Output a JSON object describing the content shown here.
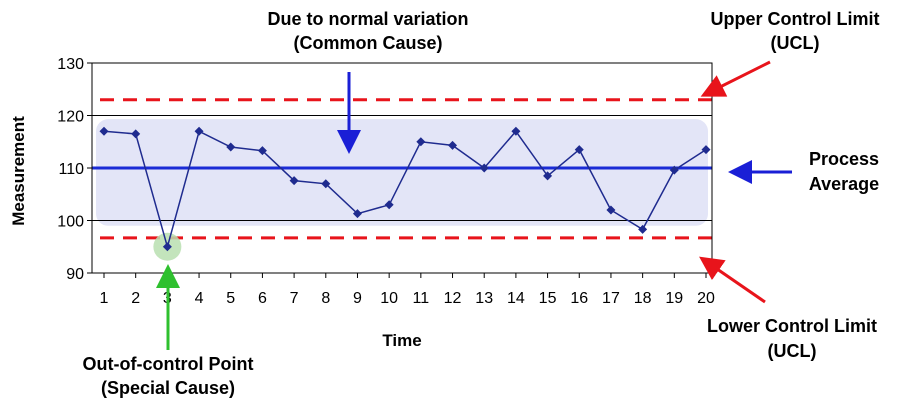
{
  "chart_data": {
    "type": "line",
    "xlabel": "Time",
    "ylabel": "Measurement",
    "ylim": [
      90,
      130
    ],
    "yticks": [
      90,
      100,
      110,
      120,
      130
    ],
    "x": [
      1,
      2,
      3,
      4,
      5,
      6,
      7,
      8,
      9,
      10,
      11,
      12,
      13,
      14,
      15,
      16,
      17,
      18,
      19,
      20
    ],
    "series": [
      {
        "values": [
          117,
          116.5,
          95,
          117,
          114,
          113.3,
          107.6,
          107,
          101.3,
          103,
          115,
          114.3,
          110,
          117,
          108.5,
          113.5,
          102,
          98.3,
          109.6,
          113.5
        ]
      }
    ],
    "process_average": 110,
    "ucl": 123,
    "lcl": 96.7,
    "normal_band": [
      99,
      119.3
    ],
    "colors": {
      "series": "#1f2b8f",
      "average": "#1a2bd6",
      "limits": "#e8141b",
      "band": "#e3e5f7",
      "highlight": "#b9dfb0",
      "arrow_blue": "#1a1fd6",
      "arrow_red": "#e8141b",
      "arrow_green": "#2fc02f"
    },
    "annotations": {
      "common_cause": [
        "Due to normal variation",
        "(Common Cause)"
      ],
      "ucl": [
        "Upper Control Limit",
        "(UCL)"
      ],
      "average": [
        "Process",
        "Average"
      ],
      "lcl": [
        "Lower Control Limit",
        "(UCL)"
      ],
      "special_cause": [
        "Out-of-control Point",
        "(Special Cause)"
      ]
    },
    "out_of_control_index": 2
  }
}
